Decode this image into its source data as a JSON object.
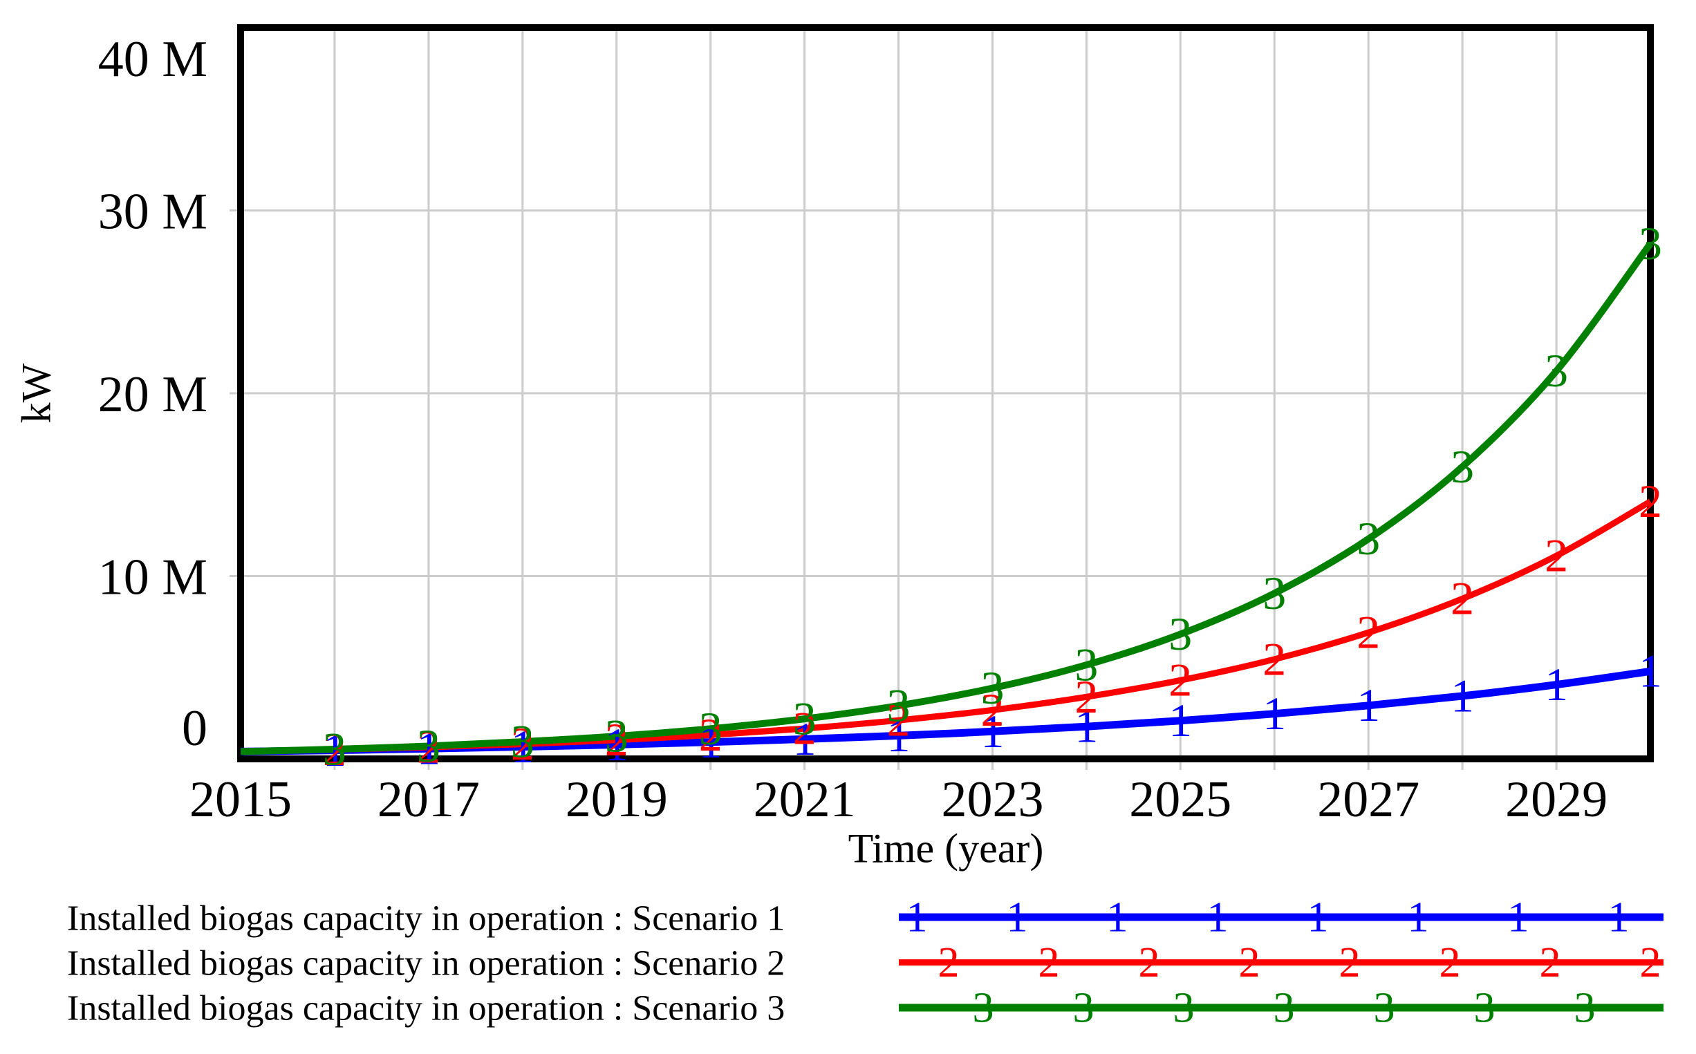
{
  "chart_data": {
    "type": "line",
    "title": "",
    "x_axis_title": "Time (year)",
    "y_unit": "kW",
    "xlim": [
      2015,
      2030
    ],
    "ylim": [
      0,
      40000000
    ],
    "grid": true,
    "legend_position": "bottom-left",
    "x": [
      2015,
      2016,
      2017,
      2018,
      2019,
      2020,
      2021,
      2022,
      2023,
      2024,
      2025,
      2026,
      2027,
      2028,
      2029,
      2030
    ],
    "x_tick_labels": [
      "2015",
      "2017",
      "2019",
      "2021",
      "2023",
      "2025",
      "2027",
      "2029"
    ],
    "y_tick_labels": [
      {
        "label": "0",
        "value": 0
      },
      {
        "label": "10 M",
        "value": 10000000
      },
      {
        "label": "20 M",
        "value": 20000000
      },
      {
        "label": "30 M",
        "value": 30000000
      },
      {
        "label": "40 M",
        "value": 40000000
      }
    ],
    "series": [
      {
        "name": "Installed biogas capacity in operation : Scenario 1",
        "marker": "1",
        "color": "#0000ff",
        "values": [
          400000,
          470000,
          560000,
          660000,
          780000,
          920000,
          1080000,
          1270000,
          1500000,
          1770000,
          2090000,
          2470000,
          2920000,
          3440000,
          4060000,
          4790000
        ]
      },
      {
        "name": "Installed biogas capacity in operation : Scenario 2",
        "marker": "2",
        "color": "#ff0000",
        "values": [
          400000,
          510000,
          640000,
          810000,
          1030000,
          1310000,
          1660000,
          2110000,
          2670000,
          3390000,
          4300000,
          5450000,
          6910000,
          8760000,
          11110000,
          14080000
        ]
      },
      {
        "name": "Installed biogas capacity in operation : Scenario 3",
        "marker": "3",
        "color": "#008000",
        "values": [
          400000,
          530000,
          700000,
          940000,
          1240000,
          1650000,
          2190000,
          2910000,
          3870000,
          5140000,
          6820000,
          9060000,
          12030000,
          15980000,
          21220000,
          28180000
        ]
      }
    ]
  },
  "colors": {
    "background": "#ffffff",
    "frame": "#000000",
    "grid": "#cccccc",
    "text": "#000000"
  }
}
